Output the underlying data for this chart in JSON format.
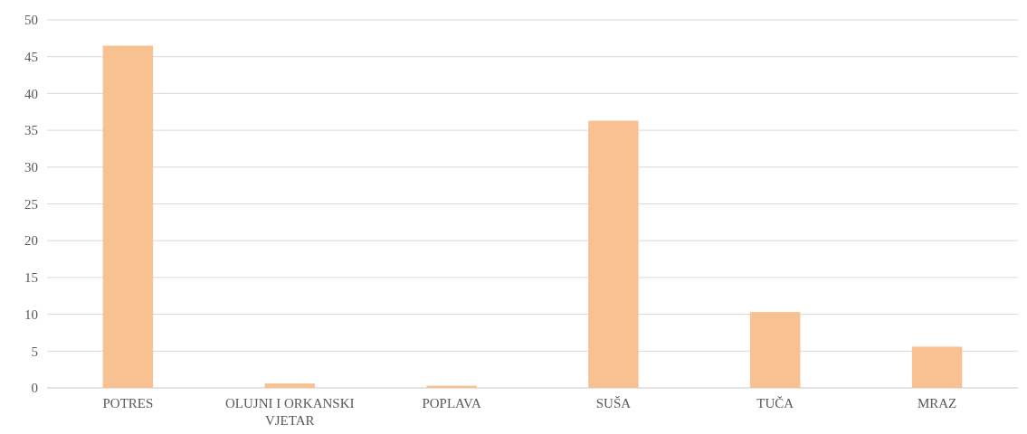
{
  "chart_data": {
    "type": "bar",
    "categories": [
      "POTRES",
      "OLUJNI I ORKANSKI VJETAR",
      "POPLAVA",
      "SUŠA",
      "TUČA",
      "MRAZ"
    ],
    "values": [
      46.5,
      0.6,
      0.3,
      36.3,
      10.3,
      5.6
    ],
    "color": "#f8c192",
    "ylim": [
      0,
      50
    ],
    "yticks": [
      0,
      5,
      10,
      15,
      20,
      25,
      30,
      35,
      40,
      45,
      50
    ],
    "grid": "y"
  }
}
